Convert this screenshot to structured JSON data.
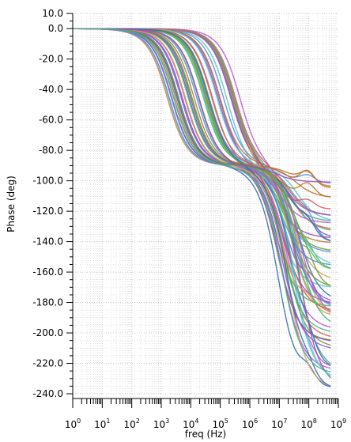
{
  "chart_data": {
    "type": "line",
    "xlabel": "freq (Hz)",
    "ylabel": "Phase (deg)",
    "x_scale": "log",
    "xlim": [
      1,
      1000000000
    ],
    "ylim": [
      -240,
      10
    ],
    "y_ticks": [
      10,
      0,
      -20,
      -40,
      -60,
      -80,
      -100,
      -120,
      -140,
      -160,
      -180,
      -200,
      -220,
      -240
    ],
    "y_tick_labels": [
      "10.0",
      "0.0",
      "-20.0",
      "-40.0",
      "-60.0",
      "-80.0",
      "-100.0",
      "-120.0",
      "-140.0",
      "-160.0",
      "-180.0",
      "-200.0",
      "-220.0",
      "-240.0"
    ],
    "x_tick_labels": [
      {
        "base": "10",
        "exp": "0"
      },
      {
        "base": "10",
        "exp": "1"
      },
      {
        "base": "10",
        "exp": "2"
      },
      {
        "base": "10",
        "exp": "3"
      },
      {
        "base": "10",
        "exp": "4"
      },
      {
        "base": "10",
        "exp": "5"
      },
      {
        "base": "10",
        "exp": "6"
      },
      {
        "base": "10",
        "exp": "7"
      },
      {
        "base": "10",
        "exp": "8"
      },
      {
        "base": "10",
        "exp": "9"
      }
    ],
    "grid": true,
    "legend": "none",
    "series_description_note": "",
    "series_colors": [
      "#5b8fd6",
      "#d65b5b",
      "#5bb85b",
      "#b85bd6",
      "#d6a25b",
      "#5bc8c8",
      "#8a5bd6",
      "#6b9e3a",
      "#c0762d",
      "#3a6fb0",
      "#9a4fb8",
      "#4fae8c"
    ],
    "sweep": {
      "count": 60,
      "pole1_log10_hz": [
        3.2,
        5.7
      ],
      "pole2_log10_hz": [
        6.9,
        7.7
      ],
      "final_phase_deg_at_x_end": [
        -100,
        -236
      ],
      "x_end_log10_hz": 8.75
    }
  }
}
